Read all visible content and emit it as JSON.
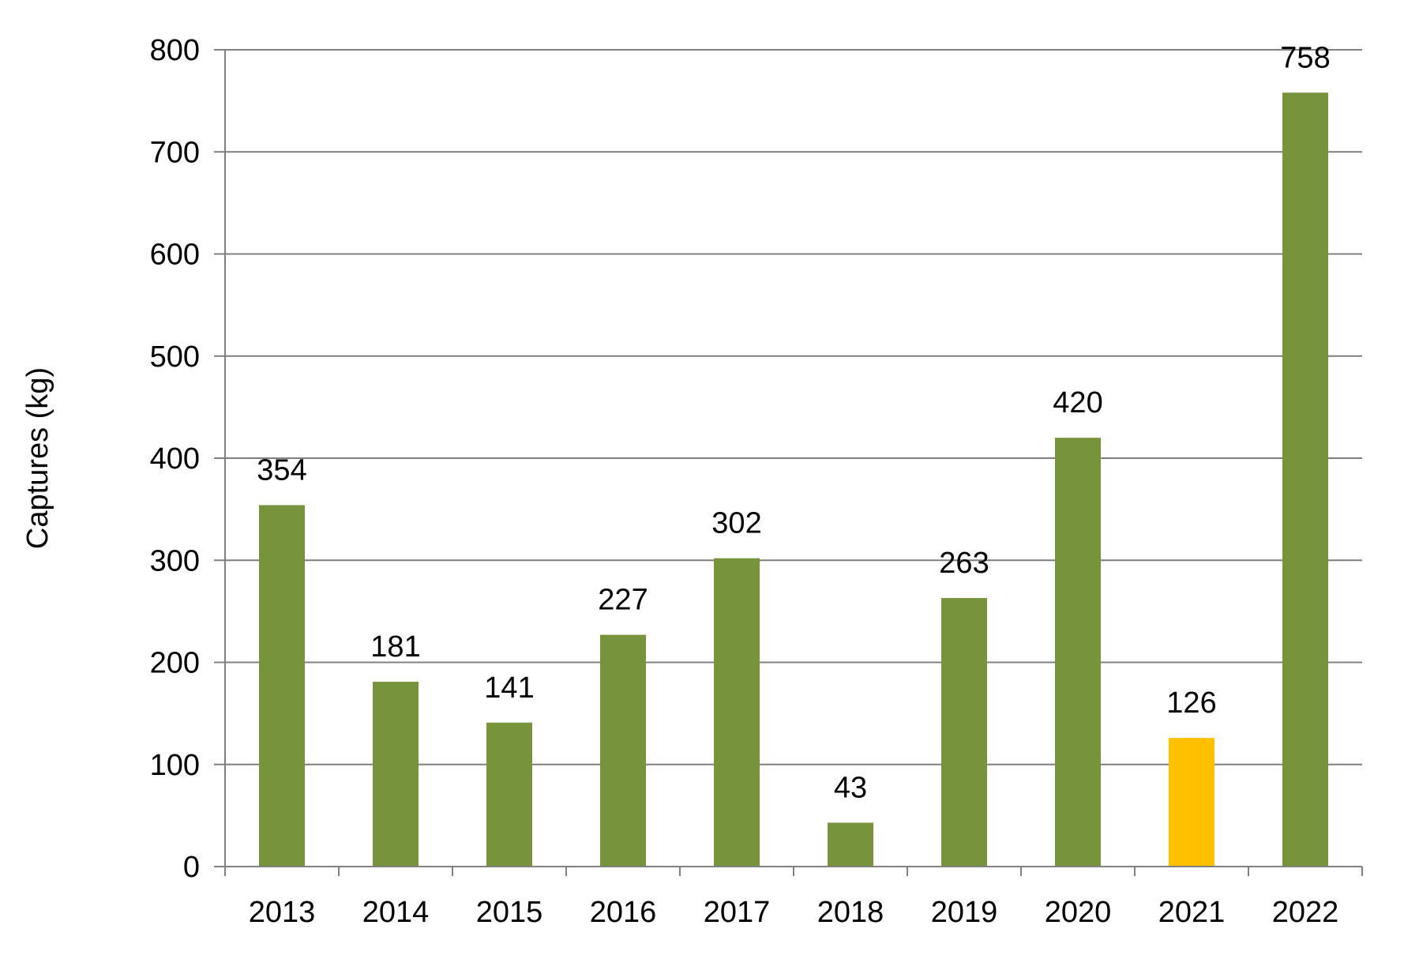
{
  "chart_data": {
    "type": "bar",
    "title": "",
    "xlabel": "",
    "ylabel": "Captures (kg)",
    "categories": [
      "2013",
      "2014",
      "2015",
      "2016",
      "2017",
      "2018",
      "2019",
      "2020",
      "2021",
      "2022"
    ],
    "values": [
      354,
      181,
      141,
      227,
      302,
      43,
      263,
      420,
      126,
      758
    ],
    "data_labels": [
      "354",
      "181",
      "141",
      "227",
      "302",
      "43",
      "263",
      "420",
      "126",
      "758"
    ],
    "bar_colors": [
      "#77933c",
      "#77933c",
      "#77933c",
      "#77933c",
      "#77933c",
      "#77933c",
      "#77933c",
      "#77933c",
      "#ffc000",
      "#77933c"
    ],
    "ylim": [
      0,
      800
    ],
    "yticks": [
      0,
      100,
      200,
      300,
      400,
      500,
      600,
      700,
      800
    ],
    "ytick_labels": [
      "0",
      "100",
      "200",
      "300",
      "400",
      "500",
      "600",
      "700",
      "800"
    ],
    "grid": true,
    "gridline_color": "#7f7f7f",
    "legend": "none"
  }
}
